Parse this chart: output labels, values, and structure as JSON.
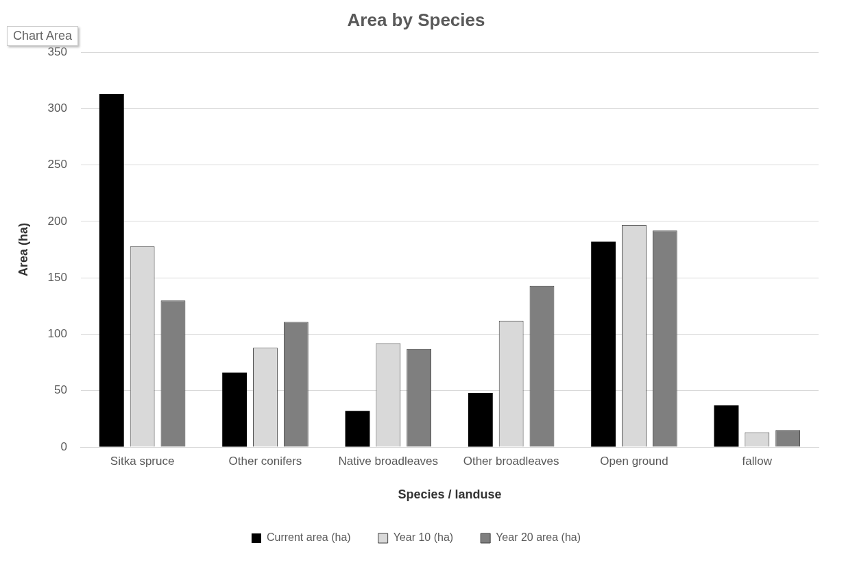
{
  "chart_data": {
    "type": "bar",
    "title": "Area by Species",
    "xlabel": "Species / landuse",
    "ylabel": "Area (ha)",
    "categories": [
      "Sitka spruce",
      "Other conifers",
      "Native broadleaves",
      "Other broadleaves",
      "Open ground",
      "fallow"
    ],
    "series": [
      {
        "name": "Current area (ha)",
        "color": "#000000",
        "values": [
          313,
          66,
          32,
          48,
          182,
          37
        ]
      },
      {
        "name": "Year 10 (ha)",
        "color": "#d9d9d9",
        "values": [
          178,
          88,
          92,
          112,
          197,
          13
        ]
      },
      {
        "name": "Year 20 area (ha)",
        "color": "#7f7f7f",
        "values": [
          130,
          111,
          87,
          143,
          192,
          15
        ]
      }
    ],
    "ylim": [
      0,
      350
    ],
    "yticks": [
      0,
      50,
      100,
      150,
      200,
      250,
      300,
      350
    ],
    "grid": "y",
    "legend": "bottom",
    "annotations": [
      "Chart Area"
    ]
  }
}
